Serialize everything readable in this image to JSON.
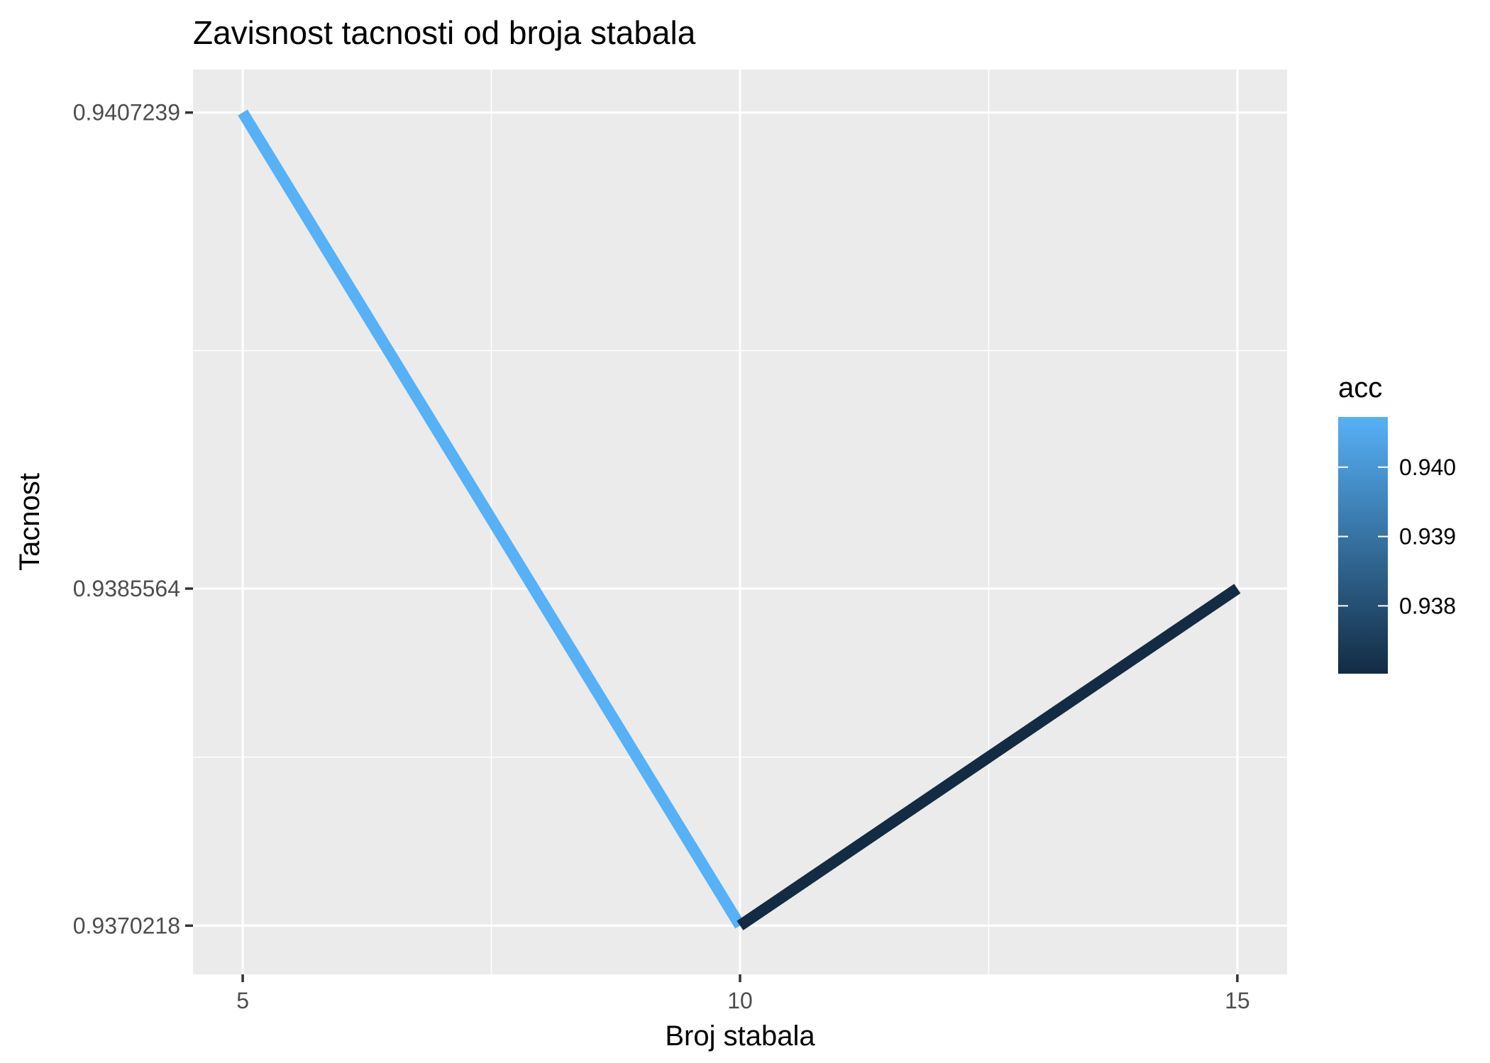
{
  "chart_data": {
    "type": "line",
    "title": "Zavisnost tacnosti od broja stabala",
    "xlabel": "Broj stabala",
    "ylabel": "Tacnost",
    "x": [
      5,
      10,
      15
    ],
    "y": [
      0.9407239,
      0.9370218,
      0.9385564
    ],
    "x_ticks": [
      "5",
      "10",
      "15"
    ],
    "y_ticks": [
      "0.9370218",
      "0.9385564",
      "0.9407239"
    ],
    "y_tick_values": [
      0.9370218,
      0.9385564,
      0.9407239
    ],
    "xlim": [
      4.5,
      15.5
    ],
    "ylim": [
      0.9368,
      0.94092
    ],
    "grid": true,
    "colors": {
      "panel": "#EBEBEB",
      "grid": "#FFFFFF",
      "low": "#132B43",
      "high": "#56B1F7"
    },
    "legend": {
      "title": "acc",
      "placement": "right",
      "labels": [
        "0.940",
        "0.939",
        "0.938"
      ],
      "values": [
        0.94,
        0.939,
        0.938
      ],
      "range": [
        0.9370218,
        0.9407239
      ]
    }
  }
}
